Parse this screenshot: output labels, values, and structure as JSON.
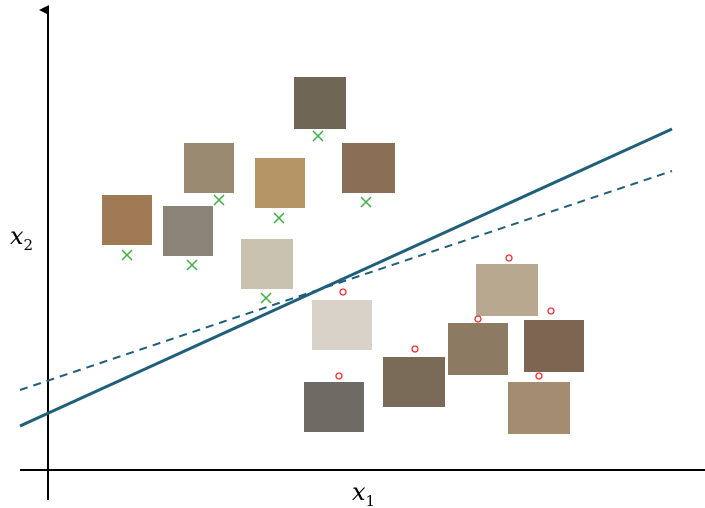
{
  "axes": {
    "x_label": {
      "base": "x",
      "sub": "1"
    },
    "y_label": {
      "base": "x",
      "sub": "2"
    }
  }
}
